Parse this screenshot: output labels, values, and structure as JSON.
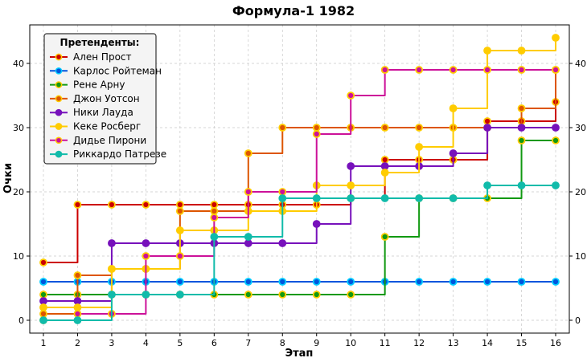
{
  "chart_data": {
    "type": "line",
    "step": "post",
    "title": "Формула-1 1982",
    "xlabel": "Этап",
    "ylabel": "Очки",
    "x": [
      1,
      2,
      3,
      4,
      5,
      6,
      7,
      8,
      9,
      10,
      11,
      12,
      13,
      14,
      15,
      16
    ],
    "xlim": [
      0.6,
      16.4
    ],
    "ylim": [
      -2,
      46
    ],
    "yticks": [
      0,
      10,
      20,
      30,
      40
    ],
    "right_yaxis": true,
    "grid": true,
    "legend": {
      "title": "Претенденты:",
      "placement": "top-left"
    },
    "series": [
      {
        "name": "Ален Прост",
        "color": "#cc0000",
        "marker_edge": "#ffcc00",
        "values": [
          9,
          18,
          18,
          18,
          18,
          18,
          18,
          18,
          18,
          19,
          25,
          25,
          25,
          31,
          31,
          34
        ]
      },
      {
        "name": "Карлос Ройтеман",
        "color": "#0055dd",
        "marker_edge": "#00ccff",
        "values": [
          6,
          6,
          6,
          6,
          6,
          6,
          6,
          6,
          6,
          6,
          6,
          6,
          6,
          6,
          6,
          6
        ]
      },
      {
        "name": "Рене Арну",
        "color": "#119911",
        "marker_edge": "#ffcc00",
        "values": [
          4,
          4,
          4,
          4,
          4,
          4,
          4,
          4,
          4,
          4,
          13,
          19,
          19,
          19,
          28,
          28
        ]
      },
      {
        "name": "Джон Уотсон",
        "color": "#dd5500",
        "marker_edge": "#ffcc00",
        "values": [
          1,
          7,
          8,
          8,
          17,
          17,
          26,
          30,
          30,
          30,
          30,
          30,
          30,
          30,
          33,
          39
        ]
      },
      {
        "name": "Ники Лауда",
        "color": "#7711bb",
        "marker_edge": "#7711bb",
        "values": [
          3,
          3,
          12,
          12,
          12,
          12,
          12,
          12,
          15,
          24,
          24,
          24,
          26,
          30,
          30,
          30
        ]
      },
      {
        "name": "Кеке Росберг",
        "color": "#ffcc00",
        "marker_edge": "#ffcc00",
        "values": [
          2,
          2,
          8,
          8,
          14,
          14,
          17,
          17,
          21,
          21,
          23,
          27,
          33,
          42,
          42,
          44
        ]
      },
      {
        "name": "Дидье Пирони",
        "color": "#cc1199",
        "marker_edge": "#ffcc00",
        "values": [
          0,
          1,
          1,
          10,
          10,
          16,
          20,
          20,
          29,
          35,
          39,
          39,
          39,
          39,
          39,
          39
        ]
      },
      {
        "name": "Риккардо Патрезе",
        "color": "#11bbaa",
        "marker_edge": "#11bbaa",
        "values": [
          0,
          0,
          4,
          4,
          4,
          13,
          13,
          19,
          19,
          19,
          19,
          19,
          19,
          21,
          21,
          21
        ]
      }
    ]
  }
}
